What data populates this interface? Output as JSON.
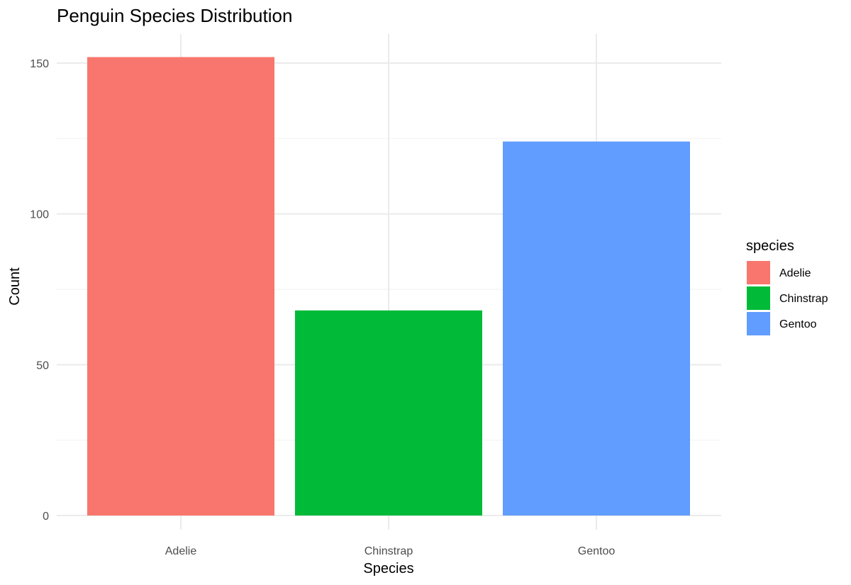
{
  "chart_data": {
    "type": "bar",
    "title": "Penguin Species Distribution",
    "xlabel": "Species",
    "ylabel": "Count",
    "categories": [
      "Adelie",
      "Chinstrap",
      "Gentoo"
    ],
    "values": [
      152,
      68,
      124
    ],
    "colors": [
      "#F8766D",
      "#00BA38",
      "#619CFF"
    ],
    "ylim": [
      0,
      160
    ],
    "yticks": [
      0,
      50,
      100,
      150
    ],
    "grid": true,
    "legend": {
      "title": "species",
      "placement": "right",
      "entries": [
        "Adelie",
        "Chinstrap",
        "Gentoo"
      ]
    }
  }
}
